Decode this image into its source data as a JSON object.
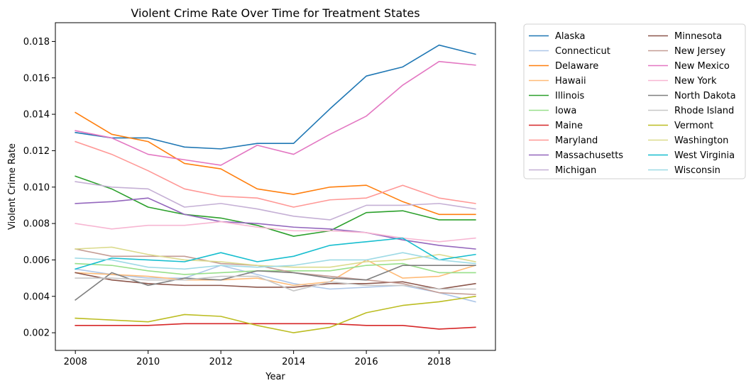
{
  "chart_data": {
    "type": "line",
    "title": "Violent Crime Rate Over Time for Treatment States",
    "xlabel": "Year",
    "ylabel": "Violent Crime Rate",
    "xlim": [
      2007.45,
      2019.55
    ],
    "ylim": [
      0.00103,
      0.01903
    ],
    "x_ticks": [
      "2008",
      "2010",
      "2012",
      "2014",
      "2016",
      "2018"
    ],
    "x_tick_values": [
      2008,
      2010,
      2012,
      2014,
      2016,
      2018
    ],
    "y_ticks": [
      "0.002",
      "0.004",
      "0.006",
      "0.008",
      "0.010",
      "0.012",
      "0.014",
      "0.016",
      "0.018"
    ],
    "y_tick_values": [
      0.002,
      0.004,
      0.006,
      0.008,
      0.01,
      0.012,
      0.014,
      0.016,
      0.018
    ],
    "grid": false,
    "legend_position": "outside-right, two columns",
    "x": [
      2008,
      2009,
      2010,
      2011,
      2012,
      2013,
      2014,
      2015,
      2016,
      2017,
      2018,
      2019
    ],
    "series": [
      {
        "name": "Alaska",
        "color": "#1f77b4",
        "values": [
          0.013,
          0.0127,
          0.0127,
          0.0122,
          0.0121,
          0.0124,
          0.0124,
          0.0143,
          0.0161,
          0.0166,
          0.0178,
          0.0173
        ]
      },
      {
        "name": "Connecticut",
        "color": "#aec7e8",
        "values": [
          0.0055,
          0.0052,
          0.005,
          0.005,
          0.0057,
          0.0052,
          0.0047,
          0.0044,
          0.0045,
          0.0046,
          0.0042,
          0.0037
        ]
      },
      {
        "name": "Delaware",
        "color": "#ff7f0e",
        "values": [
          0.0141,
          0.0129,
          0.0125,
          0.0113,
          0.011,
          0.0099,
          0.0096,
          0.01,
          0.0101,
          0.0092,
          0.0085,
          0.0085
        ]
      },
      {
        "name": "Hawaii",
        "color": "#ffbb78",
        "values": [
          0.0053,
          0.0052,
          0.0051,
          0.0049,
          0.0049,
          0.005,
          0.0046,
          0.0048,
          0.006,
          0.005,
          0.0051,
          0.0057
        ]
      },
      {
        "name": "Illinois",
        "color": "#2ca02c",
        "values": [
          0.0106,
          0.0099,
          0.0089,
          0.0085,
          0.0083,
          0.0079,
          0.0073,
          0.0076,
          0.0086,
          0.0087,
          0.0082,
          0.0082
        ]
      },
      {
        "name": "Iowa",
        "color": "#98df8a",
        "values": [
          0.0058,
          0.0057,
          0.0054,
          0.0052,
          0.0053,
          0.0054,
          0.0054,
          0.0054,
          0.0057,
          0.0058,
          0.0053,
          0.0053
        ]
      },
      {
        "name": "Maine",
        "color": "#d62728",
        "values": [
          0.0024,
          0.0024,
          0.0024,
          0.0025,
          0.0025,
          0.0025,
          0.0025,
          0.0025,
          0.0024,
          0.0024,
          0.0022,
          0.0023
        ]
      },
      {
        "name": "Maryland",
        "color": "#ff9896",
        "values": [
          0.0125,
          0.0118,
          0.0109,
          0.0099,
          0.0095,
          0.0094,
          0.0089,
          0.0093,
          0.0094,
          0.0101,
          0.0094,
          0.0091
        ]
      },
      {
        "name": "Massachusetts",
        "color": "#9467bd",
        "values": [
          0.0091,
          0.0092,
          0.0094,
          0.0085,
          0.0081,
          0.008,
          0.0078,
          0.0077,
          0.0075,
          0.0071,
          0.0068,
          0.0066
        ]
      },
      {
        "name": "Michigan",
        "color": "#c5b0d5",
        "values": [
          0.0103,
          0.01,
          0.0099,
          0.0089,
          0.0091,
          0.0088,
          0.0084,
          0.0082,
          0.009,
          0.009,
          0.0091,
          0.0088
        ]
      },
      {
        "name": "Minnesota",
        "color": "#8c564b",
        "values": [
          0.0053,
          0.0049,
          0.0047,
          0.0046,
          0.0046,
          0.0045,
          0.0045,
          0.0047,
          0.0047,
          0.0048,
          0.0044,
          0.0047
        ]
      },
      {
        "name": "New Jersey",
        "color": "#c49c94",
        "values": [
          0.0066,
          0.0062,
          0.0062,
          0.0062,
          0.0058,
          0.0057,
          0.0053,
          0.0051,
          0.0049,
          0.0047,
          0.0042,
          0.0041
        ]
      },
      {
        "name": "New Mexico",
        "color": "#e377c2",
        "values": [
          0.0131,
          0.0127,
          0.0118,
          0.0115,
          0.0112,
          0.0123,
          0.0118,
          0.0129,
          0.0139,
          0.0156,
          0.0169,
          0.0167
        ]
      },
      {
        "name": "New York",
        "color": "#f7b6d2",
        "values": [
          0.008,
          0.0077,
          0.0079,
          0.0079,
          0.0081,
          0.0078,
          0.0076,
          0.0076,
          0.0075,
          0.0072,
          0.007,
          0.0072
        ]
      },
      {
        "name": "North Dakota",
        "color": "#7f7f7f",
        "values": [
          0.0038,
          0.0053,
          0.0046,
          0.005,
          0.0049,
          0.0054,
          0.0053,
          0.005,
          0.0049,
          0.0057,
          0.0057,
          0.0057
        ]
      },
      {
        "name": "Rhode Island",
        "color": "#c7c7c7",
        "values": [
          0.005,
          0.005,
          0.0049,
          0.0049,
          0.0051,
          0.0051,
          0.0043,
          0.0048,
          0.0046,
          0.0046,
          0.0044,
          0.0044
        ]
      },
      {
        "name": "Vermont",
        "color": "#bcbd22",
        "values": [
          0.0028,
          0.0027,
          0.0026,
          0.003,
          0.0029,
          0.0024,
          0.002,
          0.0023,
          0.0031,
          0.0035,
          0.0037,
          0.004
        ]
      },
      {
        "name": "Washington",
        "color": "#dbdb8d",
        "values": [
          0.0066,
          0.0067,
          0.0063,
          0.006,
          0.0059,
          0.0057,
          0.0056,
          0.0056,
          0.0059,
          0.006,
          0.0063,
          0.0059
        ]
      },
      {
        "name": "West Virginia",
        "color": "#17becf",
        "values": [
          0.0055,
          0.0061,
          0.006,
          0.0059,
          0.0064,
          0.0059,
          0.0062,
          0.0068,
          0.007,
          0.0072,
          0.006,
          0.0063
        ]
      },
      {
        "name": "Wisconsin",
        "color": "#9edae5",
        "values": [
          0.0061,
          0.006,
          0.0056,
          0.0055,
          0.0057,
          0.0056,
          0.0057,
          0.006,
          0.006,
          0.0064,
          0.006,
          0.0058
        ]
      }
    ]
  }
}
